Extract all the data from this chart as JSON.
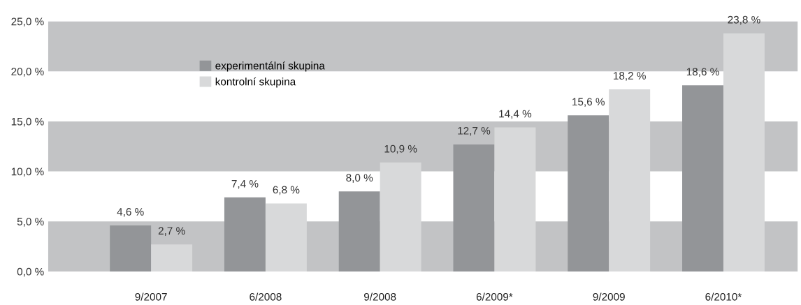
{
  "chart_data": {
    "type": "bar",
    "categories": [
      "9/2007",
      "6/2008",
      "9/2008",
      "6/2009*",
      "9/2009",
      "6/2010*"
    ],
    "series": [
      {
        "name": "experimentální skupina",
        "color": "#939598",
        "values": [
          4.6,
          7.4,
          8.0,
          12.7,
          15.6,
          18.6
        ],
        "value_labels": [
          "4,6 %",
          "7,4 %",
          "8,0 %",
          "12,7 %",
          "15,6 %",
          "18,6 %"
        ]
      },
      {
        "name": "kontrolní skupina",
        "color": "#d8d9da",
        "values": [
          2.7,
          6.8,
          10.9,
          14.4,
          18.2,
          23.8
        ],
        "value_labels": [
          "2,7 %",
          "6,8 %",
          "10,9 %",
          "14,4 %",
          "18,2 %",
          "23,8 %"
        ]
      }
    ],
    "ylim": [
      0,
      25
    ],
    "yticks": [
      {
        "value": 0,
        "label": "0,0 %"
      },
      {
        "value": 5,
        "label": "5,0 %"
      },
      {
        "value": 10,
        "label": "10,0 %"
      },
      {
        "value": 15,
        "label": "15,0 %"
      },
      {
        "value": 20,
        "label": "20,0 %"
      },
      {
        "value": 25,
        "label": "25,0 %"
      }
    ],
    "bands": [
      {
        "axis": "y",
        "from": 0,
        "to": 5,
        "color": "#c2c3c5"
      },
      {
        "axis": "y",
        "from": 10,
        "to": 15,
        "color": "#c2c3c5"
      },
      {
        "axis": "y",
        "from": 20,
        "to": 25,
        "color": "#c2c3c5"
      }
    ],
    "legend": "top left",
    "grid": false
  }
}
